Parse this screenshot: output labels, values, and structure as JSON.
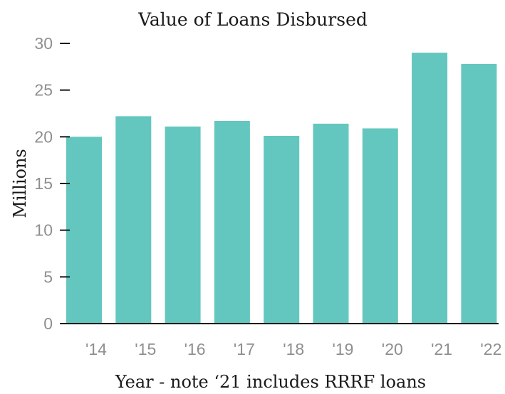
{
  "chart_data": {
    "type": "bar",
    "title": "Value of Loans Disbursed",
    "xlabel": "Year - note ‘21 includes RRRF loans",
    "ylabel": "Millions",
    "categories": [
      "'14",
      "'15",
      "'16",
      "'17",
      "'18",
      "'19",
      "'20",
      "'21",
      "'22"
    ],
    "values": [
      20.0,
      22.2,
      21.1,
      21.7,
      20.1,
      21.4,
      20.9,
      29.0,
      27.8
    ],
    "ylim": [
      0,
      30
    ],
    "yticks": [
      0,
      5,
      10,
      15,
      20,
      25,
      30
    ],
    "grid": false,
    "legend": "none",
    "colors": {
      "bar": "#63c7bf",
      "tick_text": "#8f8f8f",
      "axis": "#1a1a1a"
    }
  }
}
